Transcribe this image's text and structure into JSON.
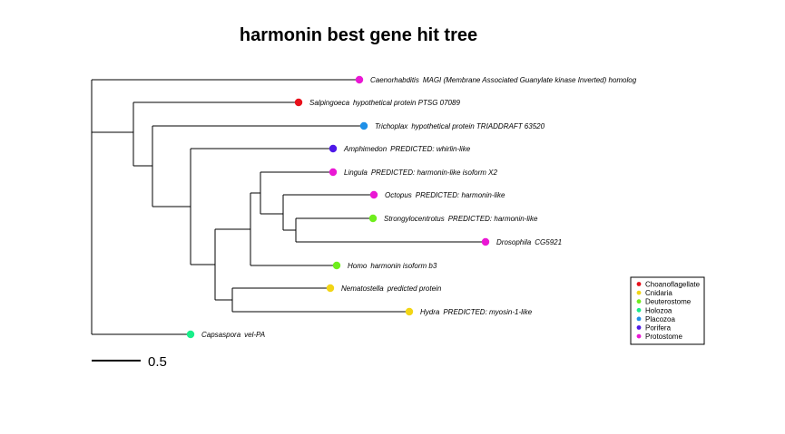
{
  "title": "harmonin best gene hit tree",
  "scale_bar": {
    "label": "0.5",
    "value": 0.5
  },
  "groups": [
    {
      "name": "Choanoflagellate",
      "color": "#e8101b"
    },
    {
      "name": "Cnidaria",
      "color": "#f2d515"
    },
    {
      "name": "Deuterostome",
      "color": "#6fee1d"
    },
    {
      "name": "Holozoa",
      "color": "#19ee8a"
    },
    {
      "name": "Placozoa",
      "color": "#1e90e8"
    },
    {
      "name": "Porifera",
      "color": "#4e18e8"
    },
    {
      "name": "Protostome",
      "color": "#ea18d4"
    }
  ],
  "tips": [
    {
      "genus": "Caenorhabditis",
      "desc": "MAGI (Membrane Associated Guanylate kinase Inverted) homolog",
      "group": "Protostome"
    },
    {
      "genus": "Salpingoeca",
      "desc": "hypothetical protein PTSG 07089",
      "group": "Choanoflagellate"
    },
    {
      "genus": "Trichoplax",
      "desc": "hypothetical protein TRIADDRAFT 63520",
      "group": "Placozoa"
    },
    {
      "genus": "Amphimedon",
      "desc": "PREDICTED: whirlin-like",
      "group": "Porifera"
    },
    {
      "genus": "Lingula",
      "desc": "PREDICTED: harmonin-like isoform X2",
      "group": "Protostome"
    },
    {
      "genus": "Octopus",
      "desc": "PREDICTED: harmonin-like",
      "group": "Protostome"
    },
    {
      "genus": "Strongylocentrotus",
      "desc": "PREDICTED: harmonin-like",
      "group": "Deuterostome"
    },
    {
      "genus": "Drosophila",
      "desc": "CG5921",
      "group": "Protostome"
    },
    {
      "genus": "Homo",
      "desc": "harmonin isoform b3",
      "group": "Deuterostome"
    },
    {
      "genus": "Nematostella",
      "desc": "predicted protein",
      "group": "Cnidaria"
    },
    {
      "genus": "Hydra",
      "desc": "PREDICTED: myosin-1-like",
      "group": "Cnidaria"
    },
    {
      "genus": "Capsaspora",
      "desc": "vel-PA",
      "group": "Holozoa"
    }
  ]
}
